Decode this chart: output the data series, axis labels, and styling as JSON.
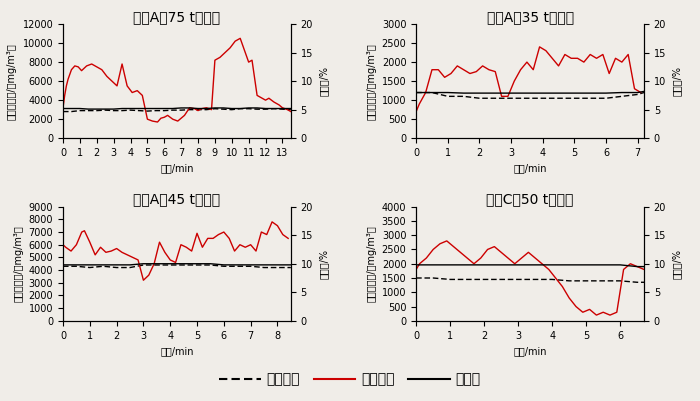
{
  "subplots": [
    {
      "title": "糖廠A（75 t鍋爐）",
      "xlim": [
        0,
        13.5
      ],
      "xticks": [
        0,
        1,
        2,
        3,
        4,
        5,
        6,
        7,
        8,
        9,
        10,
        11,
        12,
        13
      ],
      "ylim_left": [
        0,
        12000
      ],
      "yticks_left": [
        0,
        2000,
        4000,
        6000,
        8000,
        10000,
        12000
      ],
      "ylim_right": [
        0,
        20
      ],
      "yticks_right": [
        0,
        5,
        10,
        15,
        20
      ],
      "co_x": [
        0,
        0.1,
        0.2,
        0.3,
        0.5,
        0.7,
        0.9,
        1.1,
        1.4,
        1.7,
        2.0,
        2.3,
        2.6,
        2.9,
        3.2,
        3.5,
        3.8,
        4.1,
        4.4,
        4.7,
        5.0,
        5.3,
        5.6,
        5.8,
        6.0,
        6.2,
        6.5,
        6.8,
        7.0,
        7.2,
        7.5,
        7.8,
        8.0,
        8.2,
        8.5,
        8.8,
        9.0,
        9.3,
        9.6,
        9.9,
        10.2,
        10.5,
        10.7,
        10.9,
        11.0,
        11.2,
        11.5,
        11.8,
        12.0,
        12.2,
        12.5,
        12.8,
        13.0,
        13.3,
        13.5
      ],
      "co_y": [
        3200,
        4500,
        5500,
        6200,
        7200,
        7600,
        7500,
        7100,
        7600,
        7800,
        7500,
        7200,
        6500,
        6000,
        5500,
        7800,
        5500,
        4800,
        5000,
        4500,
        2000,
        1800,
        1700,
        2100,
        2200,
        2400,
        2000,
        1800,
        2100,
        2400,
        3200,
        3100,
        2900,
        3100,
        3200,
        3000,
        8200,
        8500,
        9000,
        9500,
        10200,
        10500,
        9500,
        8500,
        8000,
        8200,
        4500,
        4200,
        4000,
        4200,
        3800,
        3500,
        3200,
        3000,
        2800
      ],
      "so2_x": [
        0,
        0.5,
        1.0,
        1.5,
        2.0,
        2.5,
        3.0,
        3.5,
        4.0,
        4.5,
        5.0,
        5.5,
        6.0,
        6.5,
        7.0,
        7.5,
        8.0,
        8.5,
        9.0,
        9.5,
        10.0,
        10.5,
        11.0,
        11.5,
        12.0,
        12.5,
        13.0,
        13.5
      ],
      "so2_y": [
        2800,
        2800,
        2900,
        2900,
        2900,
        2950,
        2900,
        2900,
        2950,
        2900,
        2850,
        2900,
        2900,
        2950,
        2950,
        3000,
        3000,
        3000,
        3100,
        3050,
        3000,
        3100,
        3100,
        3050,
        3050,
        3100,
        3050,
        3000
      ],
      "o2_x": [
        0,
        0.5,
        1.0,
        1.5,
        2.0,
        2.5,
        3.0,
        3.5,
        4.0,
        4.5,
        5.0,
        5.5,
        6.0,
        6.5,
        7.0,
        7.5,
        8.0,
        8.5,
        9.0,
        9.5,
        10.0,
        10.5,
        11.0,
        11.5,
        12.0,
        12.5,
        13.0,
        13.5
      ],
      "o2_y": [
        5.2,
        5.2,
        5.2,
        5.1,
        5.1,
        5.1,
        5.1,
        5.2,
        5.2,
        5.2,
        5.2,
        5.2,
        5.2,
        5.2,
        5.3,
        5.3,
        5.2,
        5.2,
        5.3,
        5.3,
        5.2,
        5.2,
        5.3,
        5.3,
        5.2,
        5.2,
        5.2,
        5.2
      ]
    },
    {
      "title": "糖廠A（35 t鍋爐）",
      "xlim": [
        0,
        7.2
      ],
      "xticks": [
        0,
        1,
        2,
        3,
        4,
        5,
        6,
        7
      ],
      "ylim_left": [
        0,
        3000
      ],
      "yticks_left": [
        0,
        500,
        1000,
        1500,
        2000,
        2500,
        3000
      ],
      "ylim_right": [
        0,
        20
      ],
      "yticks_right": [
        0,
        5,
        10,
        15,
        20
      ],
      "co_x": [
        0,
        0.1,
        0.3,
        0.5,
        0.7,
        0.9,
        1.1,
        1.3,
        1.5,
        1.7,
        1.9,
        2.1,
        2.3,
        2.5,
        2.7,
        2.9,
        3.1,
        3.3,
        3.5,
        3.7,
        3.9,
        4.1,
        4.3,
        4.5,
        4.7,
        4.9,
        5.1,
        5.3,
        5.5,
        5.7,
        5.9,
        6.1,
        6.3,
        6.5,
        6.7,
        6.9,
        7.1
      ],
      "co_y": [
        700,
        900,
        1200,
        1800,
        1800,
        1600,
        1700,
        1900,
        1800,
        1700,
        1750,
        1900,
        1800,
        1750,
        1100,
        1100,
        1500,
        1800,
        2000,
        1800,
        2400,
        2300,
        2100,
        1900,
        2200,
        2100,
        2100,
        2000,
        2200,
        2100,
        2200,
        1700,
        2100,
        2000,
        2200,
        1300,
        1200
      ],
      "so2_x": [
        0,
        0.5,
        1.0,
        1.5,
        2.0,
        2.5,
        3.0,
        3.5,
        4.0,
        4.5,
        5.0,
        5.5,
        6.0,
        6.5,
        7.0,
        7.2
      ],
      "so2_y": [
        1200,
        1200,
        1100,
        1100,
        1050,
        1050,
        1050,
        1050,
        1050,
        1050,
        1050,
        1050,
        1050,
        1100,
        1150,
        1200
      ],
      "o2_x": [
        0,
        0.5,
        1.0,
        1.5,
        2.0,
        2.5,
        3.0,
        3.5,
        4.0,
        4.5,
        5.0,
        5.5,
        6.0,
        6.5,
        7.0,
        7.2
      ],
      "o2_y": [
        8.0,
        8.0,
        8.0,
        7.9,
        7.9,
        7.9,
        7.9,
        7.9,
        7.9,
        7.9,
        7.9,
        7.9,
        7.9,
        8.0,
        8.0,
        8.2
      ]
    },
    {
      "title": "糖廠A（45 t鍋爐）",
      "xlim": [
        0,
        8.5
      ],
      "xticks": [
        0,
        1,
        2,
        3,
        4,
        5,
        6,
        7,
        8
      ],
      "ylim_left": [
        0,
        9000
      ],
      "yticks_left": [
        0,
        1000,
        2000,
        3000,
        4000,
        5000,
        6000,
        7000,
        8000,
        9000
      ],
      "ylim_right": [
        0,
        20
      ],
      "yticks_right": [
        0,
        5,
        10,
        15,
        20
      ],
      "co_x": [
        0,
        0.1,
        0.3,
        0.5,
        0.7,
        0.8,
        1.0,
        1.2,
        1.4,
        1.6,
        1.8,
        2.0,
        2.2,
        2.4,
        2.6,
        2.8,
        3.0,
        3.2,
        3.4,
        3.6,
        3.8,
        4.0,
        4.2,
        4.4,
        4.6,
        4.8,
        5.0,
        5.2,
        5.4,
        5.6,
        5.8,
        6.0,
        6.2,
        6.4,
        6.6,
        6.8,
        7.0,
        7.2,
        7.4,
        7.6,
        7.8,
        8.0,
        8.2,
        8.4
      ],
      "co_y": [
        6000,
        5800,
        5500,
        6000,
        7000,
        7100,
        6200,
        5200,
        5800,
        5400,
        5500,
        5700,
        5400,
        5200,
        5000,
        4800,
        3200,
        3600,
        4500,
        6200,
        5400,
        4800,
        4600,
        6000,
        5800,
        5500,
        6900,
        5800,
        6500,
        6500,
        6800,
        7000,
        6500,
        5500,
        6000,
        5800,
        6000,
        5500,
        7000,
        6800,
        7800,
        7500,
        6800,
        6500
      ],
      "so2_x": [
        0,
        0.5,
        1.0,
        1.5,
        2.0,
        2.5,
        3.0,
        3.5,
        4.0,
        4.5,
        5.0,
        5.5,
        6.0,
        6.5,
        7.0,
        7.5,
        8.0,
        8.5
      ],
      "so2_y": [
        4300,
        4300,
        4200,
        4300,
        4200,
        4200,
        4400,
        4400,
        4400,
        4400,
        4400,
        4400,
        4300,
        4300,
        4300,
        4200,
        4200,
        4200
      ],
      "o2_x": [
        0,
        0.5,
        1.0,
        1.5,
        2.0,
        2.5,
        3.0,
        3.5,
        4.0,
        4.5,
        5.0,
        5.5,
        6.0,
        6.5,
        7.0,
        7.5,
        8.0,
        8.5
      ],
      "o2_y": [
        9.8,
        9.8,
        9.8,
        9.8,
        9.8,
        9.8,
        10.0,
        10.0,
        10.0,
        10.0,
        10.0,
        10.0,
        9.8,
        9.8,
        9.8,
        9.8,
        9.8,
        9.8
      ]
    },
    {
      "title": "糖廠C（50 t鍋爐）",
      "xlim": [
        0,
        6.7
      ],
      "xticks": [
        0,
        1,
        2,
        3,
        4,
        5,
        6
      ],
      "ylim_left": [
        0,
        4000
      ],
      "yticks_left": [
        0,
        500,
        1000,
        1500,
        2000,
        2500,
        3000,
        3500,
        4000
      ],
      "ylim_right": [
        0,
        20
      ],
      "yticks_right": [
        0,
        5,
        10,
        15,
        20
      ],
      "co_x": [
        0,
        0.1,
        0.3,
        0.5,
        0.7,
        0.9,
        1.1,
        1.3,
        1.5,
        1.7,
        1.9,
        2.1,
        2.3,
        2.5,
        2.7,
        2.9,
        3.1,
        3.3,
        3.5,
        3.7,
        3.9,
        4.1,
        4.3,
        4.5,
        4.7,
        4.9,
        5.1,
        5.3,
        5.5,
        5.7,
        5.9,
        6.1,
        6.3,
        6.5,
        6.7
      ],
      "co_y": [
        1800,
        2000,
        2200,
        2500,
        2700,
        2800,
        2600,
        2400,
        2200,
        2000,
        2200,
        2500,
        2600,
        2400,
        2200,
        2000,
        2200,
        2400,
        2200,
        2000,
        1800,
        1500,
        1200,
        800,
        500,
        300,
        400,
        200,
        300,
        200,
        300,
        1800,
        2000,
        1900,
        1800
      ],
      "so2_x": [
        0,
        0.5,
        1.0,
        1.5,
        2.0,
        2.5,
        3.0,
        3.5,
        4.0,
        4.5,
        5.0,
        5.5,
        6.0,
        6.5,
        6.7
      ],
      "so2_y": [
        1500,
        1500,
        1450,
        1450,
        1450,
        1450,
        1450,
        1450,
        1450,
        1400,
        1400,
        1400,
        1400,
        1350,
        1350
      ],
      "o2_x": [
        0,
        0.5,
        1.0,
        1.5,
        2.0,
        2.5,
        3.0,
        3.5,
        4.0,
        4.5,
        5.0,
        5.5,
        6.0,
        6.5,
        6.7
      ],
      "o2_y": [
        9.8,
        9.8,
        9.8,
        9.8,
        9.8,
        9.8,
        9.8,
        9.8,
        9.8,
        9.8,
        9.8,
        9.8,
        9.8,
        9.5,
        9.5
      ]
    }
  ],
  "co_color": "#cc0000",
  "so2_color": "#000000",
  "o2_color": "#000000",
  "co_linewidth": 1.0,
  "so2_linewidth": 1.0,
  "o2_linewidth": 1.0,
  "xlabel": "時間/min",
  "ylabel_left": "污染物濃度/（mg/m³）",
  "ylabel_right": "含氧量/%",
  "legend_labels": [
    "二氧化硫",
    "一氧化碳",
    "含氧量"
  ],
  "title_fontsize": 9,
  "label_fontsize": 7,
  "tick_fontsize": 7,
  "legend_fontsize": 8,
  "background_color": "#f0ede8"
}
